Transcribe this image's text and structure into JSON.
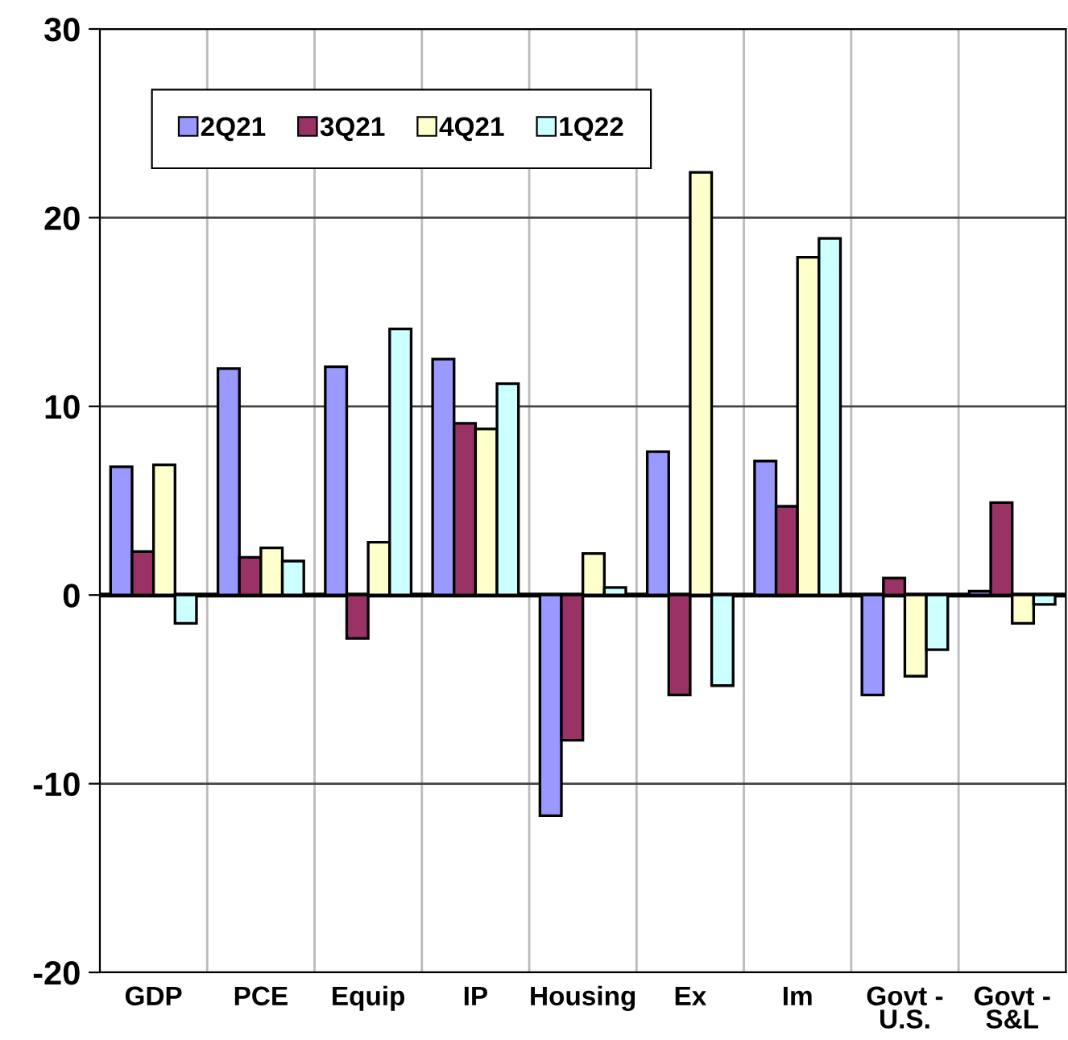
{
  "chart_data": {
    "type": "bar",
    "categories": [
      "GDP",
      "PCE",
      "Equip",
      "IP",
      "Housing",
      "Ex",
      "Im",
      "Govt -\nU.S.",
      "Govt -\nS&L"
    ],
    "series": [
      {
        "name": "2Q21",
        "color": "#9999ff",
        "values": [
          6.8,
          12.0,
          12.1,
          12.5,
          -11.7,
          7.6,
          7.1,
          -5.3,
          0.2
        ]
      },
      {
        "name": "3Q21",
        "color": "#993366",
        "values": [
          2.3,
          2.0,
          -2.3,
          9.1,
          -7.7,
          -5.3,
          4.7,
          0.9,
          4.9
        ]
      },
      {
        "name": "4Q21",
        "color": "#ffffcc",
        "values": [
          6.9,
          2.5,
          2.8,
          8.8,
          2.2,
          22.4,
          17.9,
          -4.3,
          -1.5
        ]
      },
      {
        "name": "1Q22",
        "color": "#ccffff",
        "values": [
          -1.5,
          1.8,
          14.1,
          11.2,
          0.4,
          -4.8,
          18.9,
          -2.9,
          -0.5
        ]
      }
    ],
    "ylim": [
      -20,
      30
    ],
    "yticks": [
      -20,
      -10,
      0,
      10,
      20,
      30
    ],
    "grid": true,
    "legend": "top left"
  }
}
